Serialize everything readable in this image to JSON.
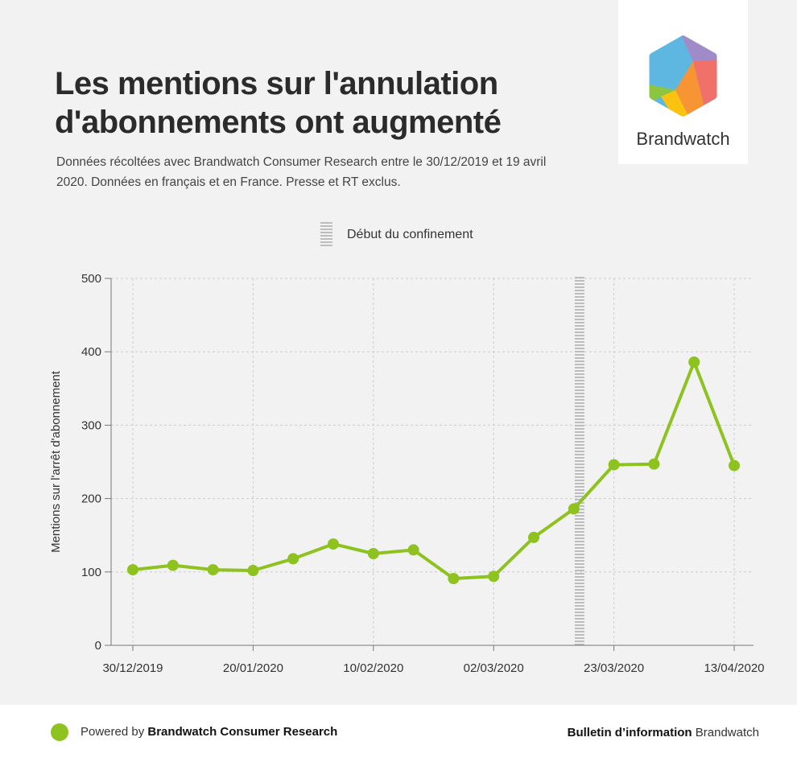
{
  "header": {
    "title": "Les mentions sur l'annulation d'abonnements ont augmenté",
    "subtitle": "Données récoltées avec Brandwatch Consumer Research entre le 30/12/2019 et 19 avril 2020. Données en français et en France. Presse et RT exclus."
  },
  "logo": {
    "text": "Brandwatch",
    "icon": "brandwatch-hexagon-logo"
  },
  "legend": {
    "label": "Début du confinement",
    "swatch": "dashed-grey-band"
  },
  "colors": {
    "line": "#8dc21f",
    "marker_band": "#bdbdbd",
    "grid": "#cccccc",
    "panel_background": "#f2f2f2"
  },
  "chart_data": {
    "type": "line",
    "ylabel": "Mentions sur l'arrêt d'abonnement",
    "xlabel": "",
    "ylim": [
      0,
      500
    ],
    "yticks": [
      "0",
      "100",
      "200",
      "300",
      "400",
      "500"
    ],
    "x_tick_labels": [
      "30/12/2019",
      "20/01/2020",
      "10/02/2020",
      "02/03/2020",
      "23/03/2020",
      "13/04/2020"
    ],
    "x": [
      "30/12/2019",
      "06/01/2020",
      "13/01/2020",
      "20/01/2020",
      "27/01/2020",
      "03/02/2020",
      "10/02/2020",
      "17/02/2020",
      "24/02/2020",
      "02/03/2020",
      "09/03/2020",
      "16/03/2020",
      "23/03/2020",
      "30/03/2020",
      "06/04/2020",
      "13/04/2020"
    ],
    "values": [
      103,
      109,
      103,
      102,
      118,
      138,
      125,
      130,
      91,
      94,
      147,
      186,
      246,
      247,
      386,
      245
    ],
    "vertical_marker": {
      "label": "Début du confinement",
      "x": "17/03/2020"
    },
    "grid": true
  },
  "footer": {
    "powered_prefix": "Powered by ",
    "powered_brand": "Brandwatch Consumer Research",
    "right_bold": "Bulletin d’information",
    "right_rest": " Brandwatch"
  }
}
